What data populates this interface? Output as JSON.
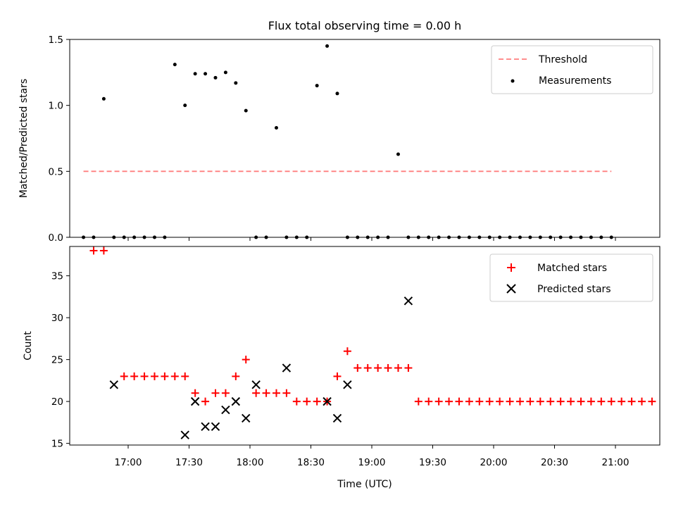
{
  "chart_data": [
    {
      "type": "scatter",
      "title": "Flux total observing time = 0.00 h",
      "xlabel": "",
      "ylabel": "Matched/Predicted stars",
      "ylim": [
        0,
        1.5
      ],
      "yticks": [
        "0.0",
        "0.5",
        "1.0",
        "1.5"
      ],
      "legend_position": "top-right",
      "threshold": {
        "name": "Threshold",
        "value": 0.5,
        "x_start": "16:38",
        "x_end": "20:58",
        "color": "#ff7f7f",
        "style": "dashed"
      },
      "series": [
        {
          "name": "Measurements",
          "color": "#000000",
          "marker": "dot",
          "x": [
            "16:38",
            "16:43",
            "16:48",
            "16:53",
            "16:58",
            "17:03",
            "17:08",
            "17:13",
            "17:18",
            "17:23",
            "17:28",
            "17:33",
            "17:38",
            "17:43",
            "17:48",
            "17:53",
            "17:58",
            "18:03",
            "18:08",
            "18:13",
            "18:18",
            "18:23",
            "18:28",
            "18:33",
            "18:38",
            "18:43",
            "18:48",
            "18:53",
            "18:58",
            "19:03",
            "19:08",
            "19:13",
            "19:18",
            "19:23",
            "19:28",
            "19:33",
            "19:38",
            "19:43",
            "19:48",
            "19:53",
            "19:58",
            "20:03",
            "20:08",
            "20:13",
            "20:18",
            "20:23",
            "20:28",
            "20:33",
            "20:38",
            "20:43",
            "20:48",
            "20:53",
            "20:58"
          ],
          "values": [
            0,
            0,
            1.05,
            0,
            0,
            0,
            0,
            0,
            0,
            1.31,
            1.0,
            1.24,
            1.24,
            1.21,
            1.25,
            1.17,
            0.96,
            0,
            0,
            0.83,
            0,
            0,
            0,
            1.15,
            1.45,
            1.09,
            0,
            0,
            0,
            0,
            0,
            0.63,
            0,
            0,
            0,
            0,
            0,
            0,
            0,
            0,
            0,
            0,
            0,
            0,
            0,
            0,
            0,
            0,
            0,
            0,
            0,
            0,
            0
          ]
        }
      ]
    },
    {
      "type": "scatter",
      "title": "",
      "xlabel": "Time (UTC)",
      "ylabel": "Count",
      "ylim": [
        14.8,
        38.5
      ],
      "yticks": [
        "15",
        "20",
        "25",
        "30",
        "35"
      ],
      "xticks": [
        "17:00",
        "17:30",
        "18:00",
        "18:30",
        "19:00",
        "19:30",
        "20:00",
        "20:30",
        "21:00"
      ],
      "legend_position": "top-right",
      "series": [
        {
          "name": "Matched stars",
          "color": "#ff0000",
          "marker": "plus",
          "x": [
            "16:43",
            "16:48",
            "16:58",
            "17:03",
            "17:08",
            "17:13",
            "17:18",
            "17:23",
            "17:28",
            "17:33",
            "17:38",
            "17:43",
            "17:48",
            "17:53",
            "17:58",
            "18:03",
            "18:08",
            "18:13",
            "18:18",
            "18:23",
            "18:28",
            "18:33",
            "18:38",
            "18:43",
            "18:48",
            "18:53",
            "18:58",
            "19:03",
            "19:08",
            "19:13",
            "19:18",
            "19:23",
            "19:28",
            "19:33",
            "19:38",
            "19:43",
            "19:48",
            "19:53",
            "19:58",
            "20:03",
            "20:08",
            "20:13",
            "20:18",
            "20:23",
            "20:28",
            "20:33",
            "20:38",
            "20:43",
            "20:48",
            "20:53",
            "20:58",
            "21:03",
            "21:08",
            "21:13",
            "21:18"
          ],
          "values": [
            38,
            38,
            23,
            23,
            23,
            23,
            23,
            23,
            23,
            21,
            20,
            21,
            21,
            23,
            25,
            21,
            21,
            21,
            21,
            20,
            20,
            20,
            20,
            23,
            26,
            24,
            24,
            24,
            24,
            24,
            24,
            20,
            20,
            20,
            20,
            20,
            20,
            20,
            20,
            20,
            20,
            20,
            20,
            20,
            20,
            20,
            20,
            20,
            20,
            20,
            20,
            20,
            20,
            20,
            20
          ]
        },
        {
          "name": "Predicted stars",
          "color": "#000000",
          "marker": "x",
          "x": [
            "16:53",
            "17:28",
            "17:33",
            "17:38",
            "17:43",
            "17:48",
            "17:53",
            "17:58",
            "18:03",
            "18:18",
            "18:38",
            "18:43",
            "18:48",
            "19:18"
          ],
          "values": [
            22,
            16,
            20,
            17,
            17,
            19,
            20,
            18,
            22,
            24,
            20,
            18,
            22,
            32
          ]
        }
      ]
    }
  ]
}
